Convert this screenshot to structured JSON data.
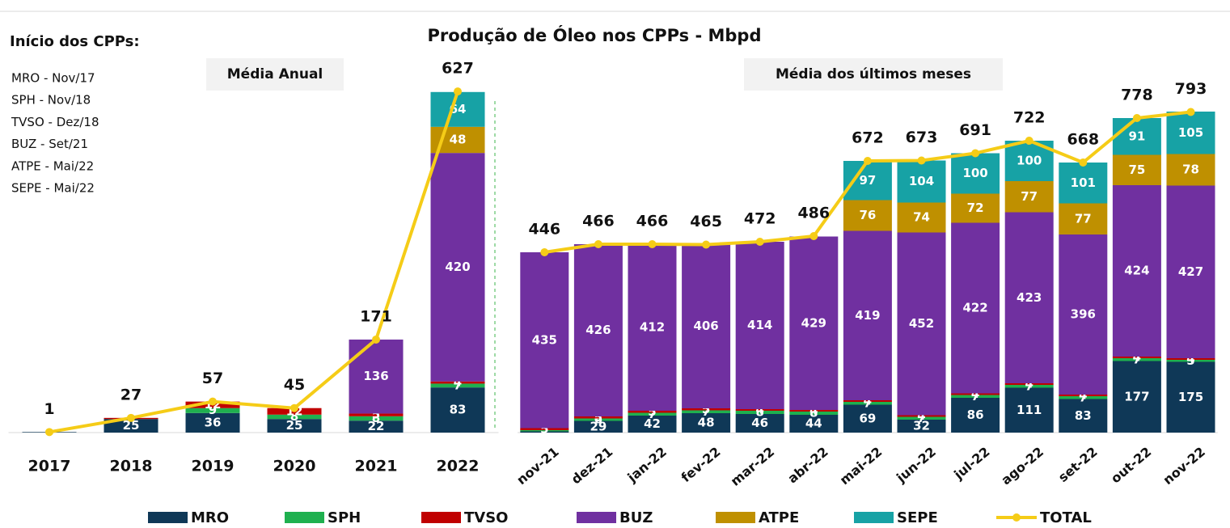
{
  "title": "Produção de Óleo nos CPPs - Mbpd",
  "notes": {
    "heading": "Início dos CPPs:",
    "lines": [
      "MRO  - Nov/17",
      "SPH   - Nov/18",
      "TVSO - Dez/18",
      "BUZ  - Set/21",
      "ATPE - Mai/22",
      "SEPE - Mai/22"
    ]
  },
  "chart_data": [
    {
      "type": "bar",
      "stacked": true,
      "title": "Média Anual",
      "categories": [
        "2017",
        "2018",
        "2019",
        "2020",
        "2021",
        "2022"
      ],
      "ylim": [
        0,
        700
      ],
      "series": [
        {
          "name": "MRO",
          "color": "#0f3857",
          "values": [
            1,
            25,
            36,
            25,
            22,
            83
          ]
        },
        {
          "name": "SPH",
          "color": "#1fb04f",
          "values": [
            0,
            0,
            9,
            8,
            8,
            7
          ]
        },
        {
          "name": "TVSO",
          "color": "#c00000",
          "values": [
            0,
            2,
            12,
            12,
            5,
            4
          ]
        },
        {
          "name": "BUZ",
          "color": "#7030a0",
          "values": [
            0,
            0,
            0,
            0,
            136,
            420
          ]
        },
        {
          "name": "ATPE",
          "color": "#bf9000",
          "values": [
            0,
            0,
            0,
            0,
            0,
            48
          ]
        },
        {
          "name": "SEPE",
          "color": "#17a2a5",
          "values": [
            0,
            0,
            0,
            0,
            0,
            64
          ]
        }
      ],
      "line": {
        "name": "TOTAL",
        "color": "#f5cc17",
        "values": [
          1,
          27,
          57,
          45,
          171,
          627
        ]
      }
    },
    {
      "type": "bar",
      "stacked": true,
      "title": "Média dos últimos meses",
      "categories": [
        "nov-21",
        "dez-21",
        "jan-22",
        "fev-22",
        "mar-22",
        "abr-22",
        "mai-22",
        "jun-22",
        "jul-22",
        "ago-22",
        "set-22",
        "out-22",
        "nov-22"
      ],
      "ylim": [
        0,
        900
      ],
      "series": [
        {
          "name": "MRO",
          "color": "#0f3857",
          "values": [
            3,
            29,
            42,
            48,
            46,
            44,
            69,
            32,
            86,
            111,
            83,
            177,
            175
          ]
        },
        {
          "name": "SPH",
          "color": "#1fb04f",
          "values": [
            3,
            6,
            7,
            7,
            8,
            8,
            7,
            7,
            7,
            7,
            7,
            7,
            5
          ]
        },
        {
          "name": "TVSO",
          "color": "#c00000",
          "values": [
            5,
            5,
            5,
            5,
            4,
            4,
            4,
            4,
            4,
            4,
            4,
            4,
            4
          ]
        },
        {
          "name": "BUZ",
          "color": "#7030a0",
          "values": [
            435,
            426,
            412,
            406,
            414,
            429,
            419,
            452,
            422,
            423,
            396,
            424,
            427
          ]
        },
        {
          "name": "ATPE",
          "color": "#bf9000",
          "values": [
            0,
            0,
            0,
            0,
            0,
            0,
            76,
            74,
            72,
            77,
            77,
            75,
            78
          ]
        },
        {
          "name": "SEPE",
          "color": "#17a2a5",
          "values": [
            0,
            0,
            0,
            0,
            0,
            0,
            97,
            104,
            100,
            100,
            101,
            91,
            105
          ]
        }
      ],
      "line": {
        "name": "TOTAL",
        "color": "#f5cc17",
        "values": [
          446,
          466,
          466,
          465,
          472,
          486,
          672,
          673,
          691,
          722,
          668,
          778,
          793
        ]
      }
    }
  ]
}
